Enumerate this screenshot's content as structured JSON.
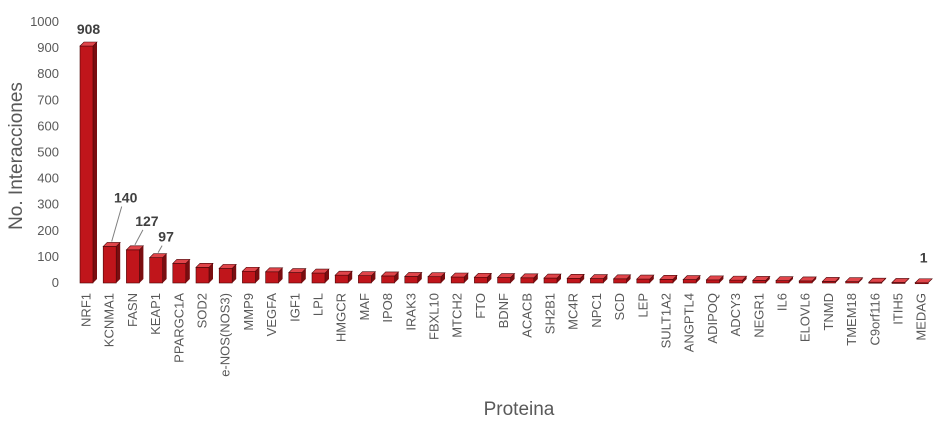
{
  "chart_data": {
    "type": "bar",
    "title": "",
    "xlabel": "Proteina",
    "ylabel": "No. Interacciones",
    "ylim": [
      0,
      1000
    ],
    "yticks": [
      0,
      100,
      200,
      300,
      400,
      500,
      600,
      700,
      800,
      900,
      1000
    ],
    "grid": false,
    "bar_color": "#c0151b",
    "categories": [
      "NRF1",
      "KCNMA1",
      "FASN",
      "KEAP1",
      "PPARGC1A",
      "SOD2",
      "e-NOS(NOS3)",
      "MMP9",
      "VEGFA",
      "IGF1",
      "LPL",
      "HMGCR",
      "MAF",
      "IPO8",
      "IRAK3",
      "FBXL10",
      "MTCH2",
      "FTO",
      "BDNF",
      "ACACB",
      "SH2B1",
      "MC4R",
      "NPC1",
      "SCD",
      "LEP",
      "SULT1A2",
      "ANGPTL4",
      "ADIPOQ",
      "ADCY3",
      "NEGR1",
      "IL6",
      "ELOVL6",
      "TNMD",
      "TMEM18",
      "C9orf116",
      "ITIH5",
      "MEDAG"
    ],
    "values": [
      908,
      140,
      127,
      97,
      75,
      60,
      56,
      45,
      43,
      40,
      38,
      30,
      28,
      27,
      25,
      24,
      23,
      22,
      21,
      20,
      19,
      18,
      17,
      16,
      15,
      14,
      13,
      12,
      11,
      10,
      9,
      8,
      6,
      5,
      3,
      2,
      1
    ],
    "data_labels": [
      {
        "category": "NRF1",
        "text": "908"
      },
      {
        "category": "KCNMA1",
        "text": "140"
      },
      {
        "category": "FASN",
        "text": "127"
      },
      {
        "category": "KEAP1",
        "text": "97"
      },
      {
        "category": "MEDAG",
        "text": "1"
      }
    ]
  }
}
